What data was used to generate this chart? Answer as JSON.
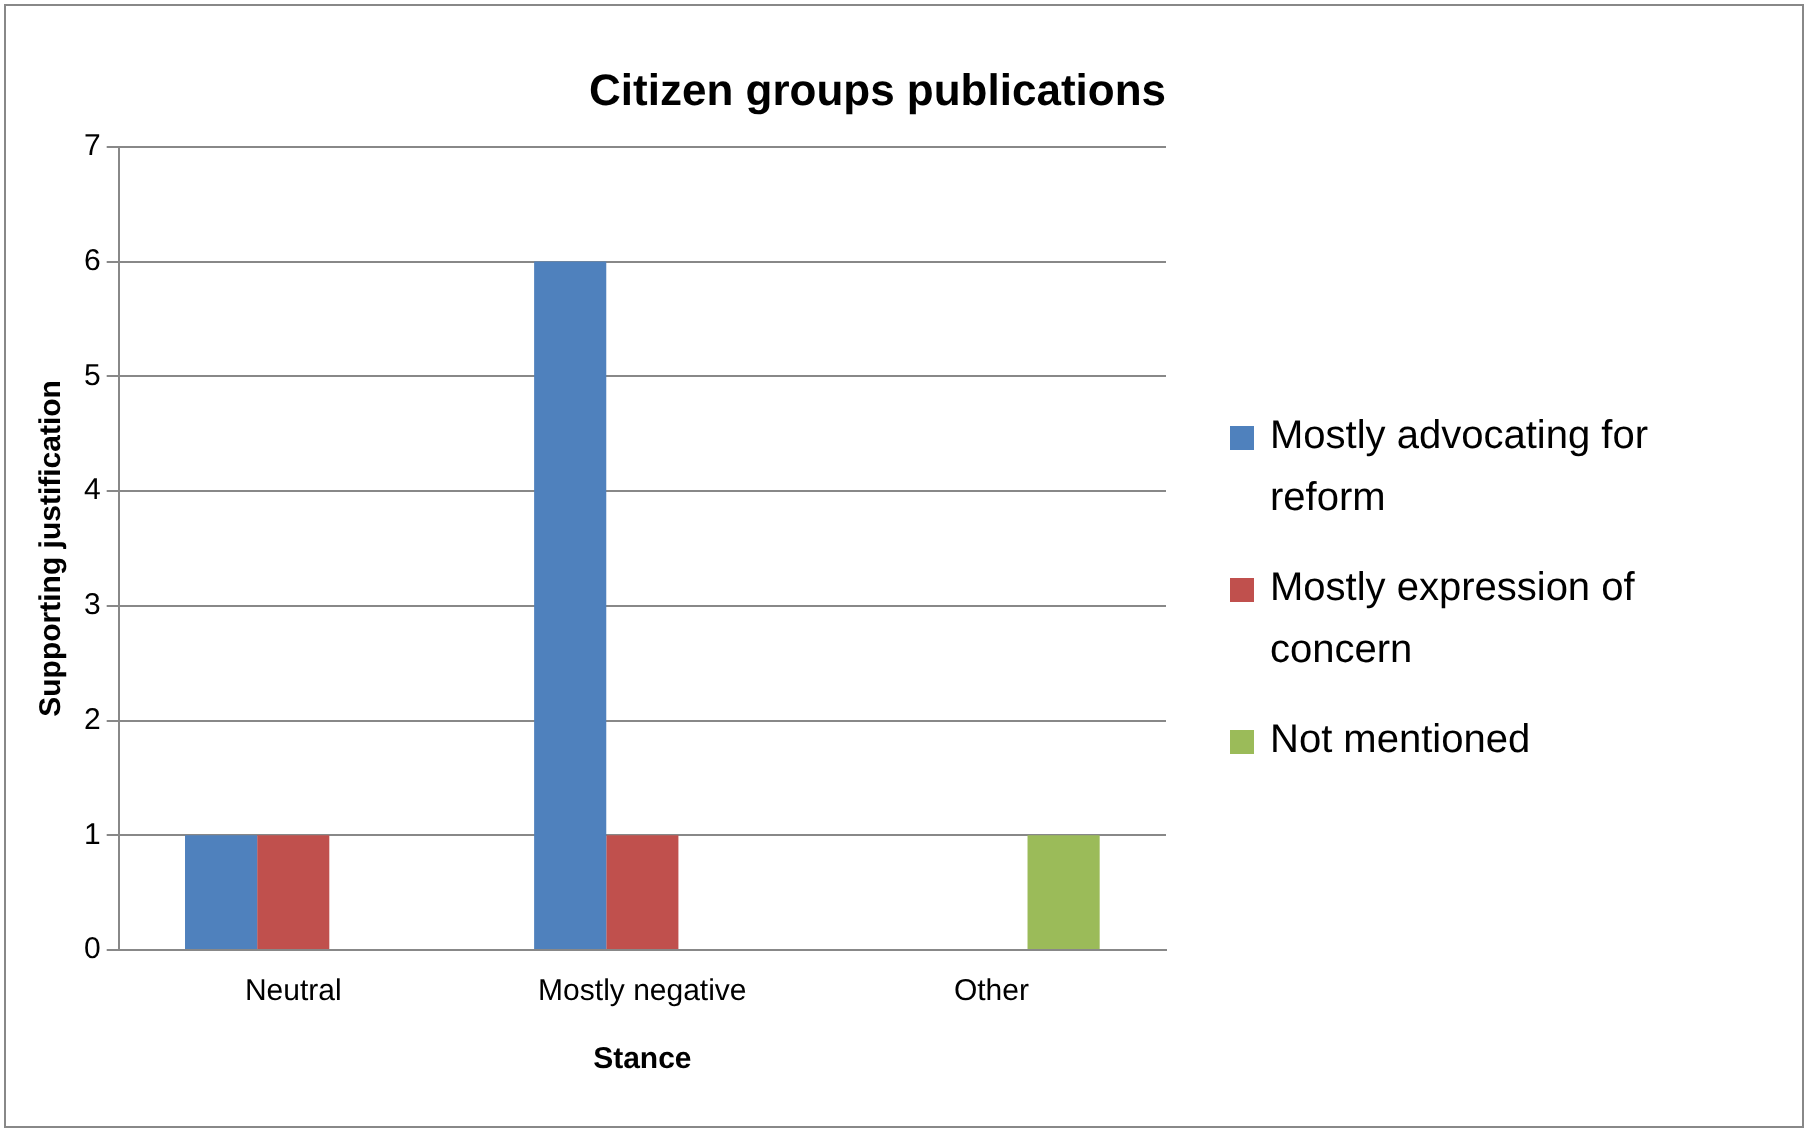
{
  "chart_data": {
    "type": "bar",
    "title": "Citizen groups publications",
    "xlabel": "Stance",
    "ylabel": "Supporting justification",
    "categories": [
      "Neutral",
      "Mostly negative",
      "Other"
    ],
    "series": [
      {
        "name": "Mostly advocating for reform",
        "color": "#4f81bd",
        "values": [
          1,
          6,
          0
        ]
      },
      {
        "name": "Mostly expression of concern",
        "color": "#c0504d",
        "values": [
          1,
          1,
          0
        ]
      },
      {
        "name": "Not mentioned",
        "color": "#9bbb59",
        "values": [
          0,
          0,
          1
        ]
      }
    ],
    "ylim": [
      0,
      7
    ],
    "yticks": [
      0,
      1,
      2,
      3,
      4,
      5,
      6,
      7
    ],
    "grid": "y",
    "legend": "right"
  }
}
